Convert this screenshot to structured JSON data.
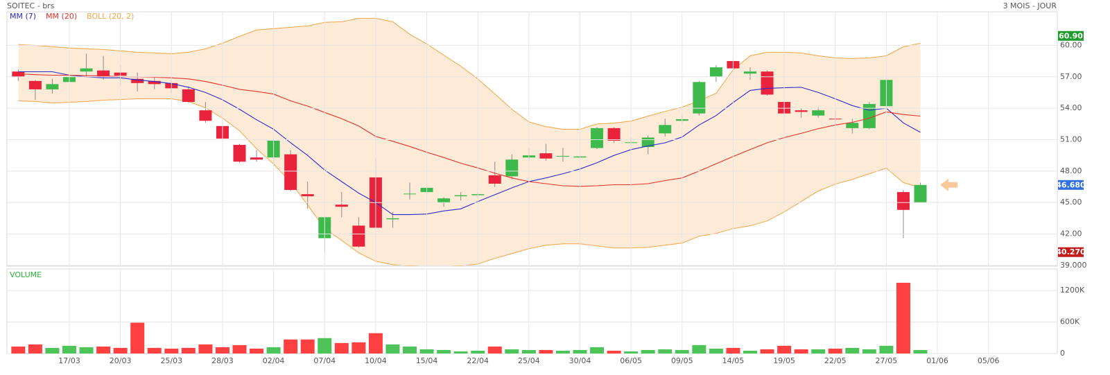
{
  "chart_data": {
    "type": "candlestick",
    "title": "SOITEC - brs",
    "subtitle": "3 MOIS - JOUR",
    "categories": [
      null,
      null,
      null,
      "17/03",
      null,
      null,
      "20/03",
      null,
      null,
      "25/03",
      null,
      null,
      "28/03",
      null,
      null,
      "02/04",
      null,
      null,
      "07/04",
      null,
      null,
      "10/04",
      null,
      null,
      "15/04",
      null,
      null,
      "22/04",
      null,
      null,
      "25/04",
      null,
      null,
      "30/04",
      null,
      null,
      "06/05",
      null,
      null,
      "09/05",
      null,
      null,
      "14/05",
      null,
      null,
      "19/05",
      null,
      null,
      "22/05",
      null,
      null,
      "27/05",
      null,
      null,
      "01/06",
      null,
      null,
      "05/06"
    ],
    "open": [
      57.5,
      56.6,
      55.8,
      56.5,
      57.5,
      57.6,
      57.4,
      56.8,
      56.6,
      56.4,
      55.8,
      53.8,
      52.3,
      50.5,
      49.3,
      49.3,
      49.6,
      45.8,
      41.6,
      44.8,
      42.8,
      47.4,
      43.4,
      45.8,
      46.0,
      45.0,
      45.6,
      45.7,
      47.6,
      47.5,
      49.3,
      49.7,
      49.4,
      49.3,
      50.2,
      52.1,
      50.75,
      50.3,
      51.6,
      52.8,
      53.5,
      57.0,
      58.5,
      57.3,
      57.5,
      54.6,
      53.8,
      53.3,
      53.0,
      52.1,
      52.1,
      54.2,
      46.0,
      45.0,
      null,
      null,
      null,
      null
    ],
    "high": [
      57.7,
      56.7,
      56.8,
      58.2,
      59.2,
      59.0,
      58.1,
      57.4,
      57.0,
      56.7,
      56.1,
      54.6,
      53.0,
      50.6,
      50.0,
      51.1,
      50.0,
      47.0,
      43.7,
      46.0,
      43.6,
      49.3,
      44.1,
      46.9,
      46.8,
      45.5,
      46.0,
      46.0,
      48.9,
      49.6,
      50.2,
      50.6,
      50.2,
      50.1,
      52.2,
      52.2,
      51.2,
      51.4,
      53.0,
      53.3,
      56.6,
      58.1,
      58.9,
      57.9,
      57.6,
      54.7,
      54.0,
      54.1,
      53.8,
      53.0,
      54.6,
      56.8,
      46.2,
      46.9,
      null,
      null,
      null,
      null
    ],
    "low": [
      56.6,
      54.8,
      55.4,
      56.2,
      57.0,
      56.7,
      56.2,
      55.6,
      55.8,
      55.4,
      54.5,
      52.6,
      51.0,
      48.8,
      48.9,
      48.5,
      46.1,
      44.4,
      40.27,
      43.6,
      40.7,
      42.5,
      42.6,
      45.3,
      45.6,
      44.6,
      45.2,
      45.4,
      46.5,
      47.2,
      49.0,
      49.0,
      48.9,
      48.8,
      50.1,
      50.7,
      50.4,
      49.6,
      51.3,
      52.6,
      53.3,
      56.5,
      57.7,
      56.7,
      55.2,
      53.2,
      53.1,
      53.1,
      52.4,
      51.6,
      52.0,
      54.1,
      41.6,
      45.0,
      null,
      null,
      null,
      null
    ],
    "close": [
      57.0,
      55.8,
      56.3,
      57.0,
      57.8,
      57.0,
      57.1,
      56.4,
      56.3,
      55.9,
      54.6,
      52.8,
      51.1,
      48.9,
      49.1,
      50.9,
      46.2,
      45.6,
      43.6,
      44.6,
      40.8,
      42.6,
      43.5,
      45.85,
      46.4,
      45.4,
      45.7,
      45.8,
      46.8,
      49.1,
      49.5,
      49.2,
      49.45,
      49.4,
      52.1,
      50.9,
      50.75,
      51.2,
      52.4,
      52.95,
      56.5,
      57.9,
      57.8,
      57.5,
      55.3,
      53.5,
      53.65,
      53.8,
      52.95,
      52.6,
      54.4,
      56.7,
      44.3,
      46.68,
      null,
      null,
      null,
      null
    ],
    "up_color": "#3dba4b",
    "down_color": "#e8233b",
    "series": [
      {
        "name": "MM (7)",
        "color": "#2a2ad0",
        "values": [
          57.48,
          57.48,
          57.48,
          57.15,
          57.0,
          56.9,
          56.9,
          56.7,
          56.55,
          56.35,
          56.0,
          55.5,
          54.8,
          53.9,
          52.9,
          52.0,
          50.7,
          49.5,
          48.1,
          47.0,
          45.9,
          45.0,
          43.85,
          43.85,
          43.9,
          44.2,
          44.4,
          45.1,
          45.75,
          46.4,
          47.0,
          47.35,
          47.75,
          48.2,
          48.8,
          49.5,
          50.05,
          50.4,
          50.7,
          51.25,
          52.4,
          53.3,
          54.55,
          55.7,
          55.9,
          55.95,
          56.0,
          55.5,
          54.9,
          54.25,
          53.8,
          54.0,
          52.6,
          51.7,
          null,
          null,
          null,
          null
        ]
      },
      {
        "name": "MM (20)",
        "color": "#e8302a",
        "values": [
          57.28,
          57.2,
          57.15,
          57.15,
          57.1,
          57.1,
          57.0,
          57.0,
          56.95,
          56.9,
          56.8,
          56.55,
          56.2,
          55.8,
          55.6,
          55.35,
          54.7,
          54.2,
          53.6,
          53.0,
          52.3,
          51.3,
          50.85,
          50.35,
          49.8,
          49.3,
          48.75,
          48.3,
          47.8,
          47.35,
          47.0,
          46.8,
          46.6,
          46.55,
          46.6,
          46.7,
          46.7,
          46.8,
          47.1,
          47.35,
          48.0,
          48.7,
          49.4,
          50.05,
          50.7,
          51.2,
          51.6,
          52.05,
          52.4,
          52.65,
          53.05,
          53.65,
          53.4,
          53.25,
          null,
          null,
          null,
          null
        ]
      }
    ],
    "bands": {
      "name": "BOLL (20, 2)",
      "color": "#f5a545",
      "fill": "#fde8d0",
      "upper": [
        60.07,
        60.0,
        59.87,
        59.75,
        59.67,
        59.6,
        59.47,
        59.34,
        59.27,
        59.2,
        59.34,
        59.67,
        60.2,
        60.86,
        61.46,
        61.6,
        61.72,
        61.85,
        62.19,
        62.25,
        62.58,
        62.58,
        62.25,
        61.06,
        60.13,
        59.07,
        58.0,
        56.8,
        55.36,
        53.9,
        52.7,
        52.25,
        51.99,
        51.99,
        52.5,
        52.58,
        52.78,
        53.25,
        53.7,
        54.1,
        54.7,
        55.43,
        57.68,
        59.0,
        59.34,
        59.34,
        59.27,
        59.0,
        58.8,
        58.74,
        58.8,
        59.0,
        59.87,
        60.2,
        null,
        null,
        null,
        null
      ],
      "lower": [
        54.7,
        54.64,
        54.5,
        54.57,
        54.64,
        54.77,
        54.83,
        54.9,
        54.9,
        54.9,
        54.64,
        54.04,
        53.05,
        51.85,
        50.13,
        48.68,
        46.95,
        44.77,
        42.52,
        41.39,
        40.2,
        39.4,
        39.07,
        38.94,
        38.87,
        38.87,
        38.94,
        39.14,
        39.67,
        40.13,
        40.6,
        40.93,
        41.06,
        41.06,
        40.86,
        40.66,
        40.66,
        40.73,
        40.93,
        41.13,
        41.79,
        42.05,
        42.52,
        42.78,
        43.25,
        44.1,
        45.1,
        46.1,
        46.75,
        47.2,
        47.75,
        48.28,
        46.9,
        46.43,
        null,
        null,
        null,
        null
      ]
    },
    "ylim": [
      38.93,
      63.2
    ],
    "yticks": [
      {
        "value": 39,
        "label": "39.000"
      },
      {
        "value": 42,
        "label": "42.00"
      },
      {
        "value": 45,
        "label": "45.00"
      },
      {
        "value": 48,
        "label": "48.00"
      },
      {
        "value": 51,
        "label": "51.00"
      },
      {
        "value": 54,
        "label": "54.00"
      },
      {
        "value": 57,
        "label": "57.00"
      },
      {
        "value": 60,
        "label": "60.00"
      }
    ],
    "markers": [
      {
        "value": 60.9,
        "label": "60.90",
        "color": "#1f9a2c"
      },
      {
        "value": 46.68,
        "label": "46.680",
        "color": "#2f6fe0"
      },
      {
        "value": 40.27,
        "label": "40.270",
        "color": "#c41a1a"
      }
    ],
    "grid": true,
    "volume": {
      "title": "VOLUME",
      "title_color": "#2bb03a",
      "up_color": "#4cc45a",
      "down_color": "#ff4040",
      "values": [
        133000,
        173000,
        107000,
        147000,
        120000,
        133000,
        107000,
        587000,
        107000,
        93000,
        107000,
        173000,
        120000,
        160000,
        93000,
        120000,
        267000,
        267000,
        293000,
        200000,
        213000,
        387000,
        173000,
        133000,
        80000,
        67000,
        40000,
        53000,
        133000,
        80000,
        67000,
        67000,
        53000,
        67000,
        120000,
        53000,
        40000,
        67000,
        80000,
        67000,
        160000,
        93000,
        107000,
        53000,
        80000,
        147000,
        80000,
        80000,
        93000,
        107000,
        80000,
        147000,
        1347000,
        67000,
        null,
        null,
        null,
        null
      ],
      "ylim": [
        0,
        1610000
      ],
      "yticks": [
        0,
        {
          "value": 600000,
          "label": "600K"
        },
        {
          "value": 1200000,
          "label": "1200K"
        }
      ]
    }
  }
}
